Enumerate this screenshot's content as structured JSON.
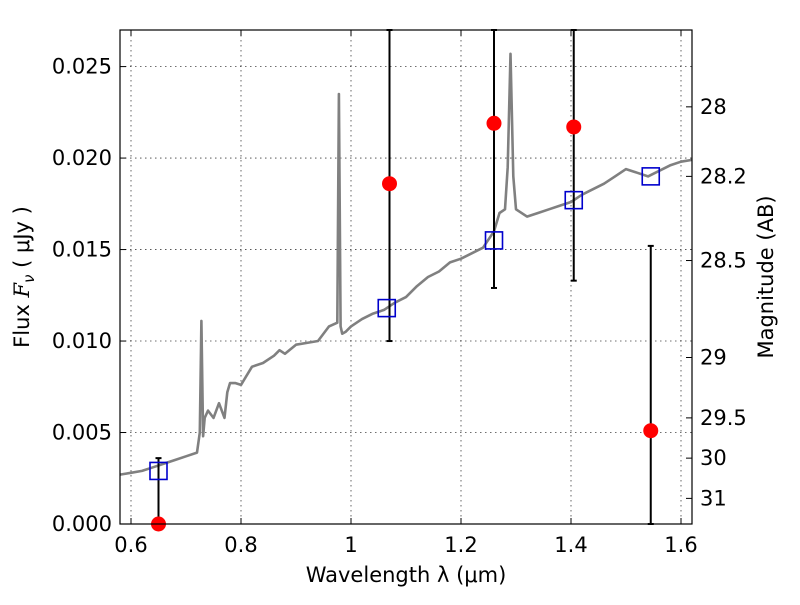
{
  "chart_data": {
    "type": "scatter",
    "xlabel": "Wavelength  λ (μm)",
    "ylabel_prefix": "Flux ",
    "ylabel_var": "F",
    "ylabel_sub": "ν",
    "ylabel_suffix": "  ( μJy )",
    "y2label": "Magnitude (AB)",
    "xlim": [
      0.58,
      1.62
    ],
    "ylim": [
      0,
      0.027
    ],
    "grid": true,
    "x_ticks": [
      0.6,
      0.8,
      1.0,
      1.2,
      1.4,
      1.6
    ],
    "x_tick_labels": [
      "0.6",
      "0.8",
      "1",
      "1.2",
      "1.4",
      "1.6"
    ],
    "y_ticks": [
      0,
      0.005,
      0.01,
      0.015,
      0.02,
      0.025
    ],
    "y_tick_labels": [
      "0.000",
      "0.005",
      "0.010",
      "0.015",
      "0.020",
      "0.025"
    ],
    "y2_ticks": [
      {
        "label": "28",
        "flux": 0.0228
      },
      {
        "label": "28.2",
        "flux": 0.019
      },
      {
        "label": "28.5",
        "flux": 0.0144
      },
      {
        "label": "29",
        "flux": 0.0091
      },
      {
        "label": "29.5",
        "flux": 0.0058
      },
      {
        "label": "30",
        "flux": 0.0036
      },
      {
        "label": "31",
        "flux": 0.0014
      }
    ],
    "colors": {
      "spectrum": "#808080",
      "observed": "#ff0000",
      "model": "#0000cc",
      "errorbar": "#000000"
    },
    "series": [
      {
        "kind": "line",
        "x": [
          0.58,
          0.6,
          0.62,
          0.64,
          0.66,
          0.68,
          0.7,
          0.72,
          0.725,
          0.728,
          0.731,
          0.734,
          0.74,
          0.75,
          0.76,
          0.77,
          0.775,
          0.78,
          0.79,
          0.8,
          0.82,
          0.84,
          0.86,
          0.87,
          0.88,
          0.9,
          0.92,
          0.94,
          0.96,
          0.975,
          0.978,
          0.981,
          0.984,
          0.99,
          1.0,
          1.02,
          1.04,
          1.06,
          1.08,
          1.1,
          1.12,
          1.14,
          1.16,
          1.18,
          1.2,
          1.22,
          1.24,
          1.26,
          1.27,
          1.28,
          1.285,
          1.29,
          1.295,
          1.3,
          1.32,
          1.34,
          1.36,
          1.38,
          1.4,
          1.42,
          1.44,
          1.46,
          1.48,
          1.5,
          1.52,
          1.54,
          1.56,
          1.58,
          1.6,
          1.62
        ],
        "y": [
          0.0027,
          0.0028,
          0.0029,
          0.0031,
          0.0033,
          0.0035,
          0.0037,
          0.0039,
          0.005,
          0.0111,
          0.0048,
          0.0058,
          0.0062,
          0.0058,
          0.0066,
          0.0058,
          0.0072,
          0.0077,
          0.0077,
          0.0076,
          0.0086,
          0.0088,
          0.0092,
          0.0095,
          0.0093,
          0.0098,
          0.0099,
          0.01,
          0.0108,
          0.011,
          0.0235,
          0.0108,
          0.0104,
          0.0105,
          0.0108,
          0.0112,
          0.0115,
          0.0117,
          0.0121,
          0.0124,
          0.013,
          0.0135,
          0.0138,
          0.0143,
          0.0145,
          0.0148,
          0.0151,
          0.016,
          0.017,
          0.0172,
          0.0195,
          0.0257,
          0.019,
          0.0172,
          0.0168,
          0.017,
          0.0172,
          0.0174,
          0.0176,
          0.018,
          0.0183,
          0.0186,
          0.019,
          0.0194,
          0.0192,
          0.019,
          0.0193,
          0.0196,
          0.0198,
          0.0199
        ]
      },
      {
        "kind": "points",
        "name": "observed",
        "x": [
          0.65,
          1.07,
          1.26,
          1.405,
          1.545
        ],
        "y": [
          0.0,
          0.0186,
          0.0219,
          0.0217,
          0.0051
        ],
        "err_low": [
          0.0,
          0.0086,
          0.009,
          0.0084,
          0.0051
        ],
        "err_high": [
          0.0036,
          0.0084,
          0.0051,
          0.0053,
          0.0101
        ]
      },
      {
        "kind": "points",
        "name": "model",
        "x": [
          0.65,
          1.065,
          1.26,
          1.405,
          1.545
        ],
        "y": [
          0.0029,
          0.0118,
          0.0155,
          0.0177,
          0.019
        ]
      }
    ]
  }
}
